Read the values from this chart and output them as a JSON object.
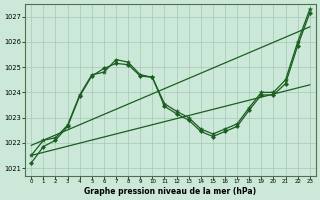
{
  "xlabel": "Graphe pression niveau de la mer (hPa)",
  "background_color": "#cce8d8",
  "plot_background": "#cce8d8",
  "grid_color": "#a8c8b8",
  "line_color": "#1a5e20",
  "marker_color": "#1a5e20",
  "xlim": [
    -0.5,
    23.5
  ],
  "ylim": [
    1020.7,
    1027.5
  ],
  "yticks": [
    1021,
    1022,
    1023,
    1024,
    1025,
    1026,
    1027
  ],
  "xticks": [
    0,
    1,
    2,
    3,
    4,
    5,
    6,
    7,
    8,
    9,
    10,
    11,
    12,
    13,
    14,
    15,
    16,
    17,
    18,
    19,
    20,
    21,
    22,
    23
  ],
  "line1_x": [
    0,
    23
  ],
  "line1_y": [
    1021.5,
    1024.3
  ],
  "line2_x": [
    0,
    23
  ],
  "line2_y": [
    1021.9,
    1026.6
  ],
  "line3_x": [
    0,
    1,
    2,
    3,
    4,
    5,
    6,
    7,
    8,
    9,
    10,
    11,
    12,
    13,
    14,
    15,
    16,
    17,
    18,
    19,
    20,
    21,
    22,
    23
  ],
  "line3_y": [
    1021.5,
    1022.1,
    1022.2,
    1022.7,
    1023.9,
    1024.7,
    1024.8,
    1025.3,
    1025.2,
    1024.7,
    1024.6,
    1023.55,
    1023.25,
    1023.0,
    1022.55,
    1022.35,
    1022.55,
    1022.75,
    1023.4,
    1024.0,
    1024.0,
    1024.5,
    1026.0,
    1027.3
  ],
  "line4_x": [
    0,
    1,
    2,
    3,
    4,
    5,
    6,
    7,
    8,
    9,
    10,
    11,
    12,
    13,
    14,
    15,
    16,
    17,
    18,
    19,
    20,
    21,
    22,
    23
  ],
  "line4_y": [
    1021.2,
    1021.85,
    1022.1,
    1022.65,
    1023.85,
    1024.65,
    1024.95,
    1025.15,
    1025.1,
    1024.65,
    1024.6,
    1023.45,
    1023.15,
    1022.9,
    1022.45,
    1022.25,
    1022.45,
    1022.65,
    1023.3,
    1023.9,
    1023.9,
    1024.35,
    1025.85,
    1027.15
  ]
}
